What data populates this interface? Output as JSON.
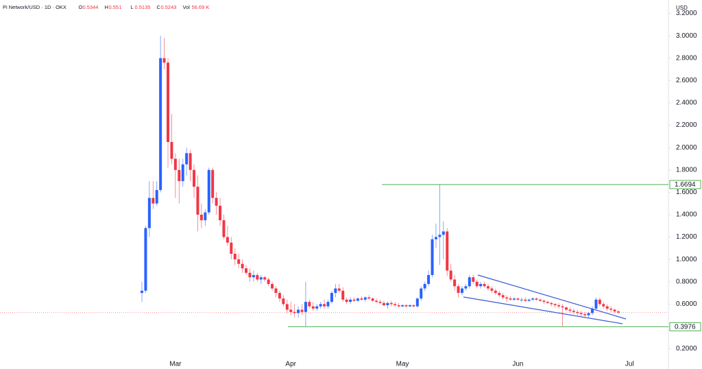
{
  "chart_data": {
    "type": "candlestick",
    "title": "Pi Network/USD · 1D · OKX",
    "ohlc_header": [
      {
        "label": "O",
        "value": 0.5344
      },
      {
        "label": "H",
        "value": 0.551
      },
      {
        "label": "L",
        "value": 0.5135
      },
      {
        "label": "C",
        "value": 0.5243
      }
    ],
    "volume_label": "Vol",
    "volume": "56.69 K",
    "currency": "USD",
    "up_color": "#2962ff",
    "down_color": "#f23645",
    "categories": [
      null,
      null,
      null,
      null,
      null,
      null,
      null,
      null,
      null,
      "Mar",
      null,
      null,
      null,
      null,
      null,
      null,
      null,
      null,
      null,
      null,
      null,
      null,
      null,
      null,
      null,
      null,
      null,
      null,
      null,
      null,
      null,
      null,
      null,
      null,
      null,
      null,
      null,
      null,
      null,
      null,
      "Apr",
      null,
      null,
      null,
      null,
      null,
      null,
      null,
      null,
      null,
      null,
      null,
      null,
      null,
      null,
      null,
      null,
      null,
      null,
      null,
      null,
      null,
      null,
      null,
      null,
      null,
      null,
      null,
      null,
      null,
      "May",
      null,
      null,
      null,
      null,
      null,
      null,
      null,
      null,
      null,
      null,
      null,
      null,
      null,
      null,
      null,
      null,
      null,
      null,
      null,
      null,
      null,
      null,
      null,
      null,
      null,
      null,
      null,
      null,
      null,
      null,
      "Jun",
      null,
      null,
      null,
      null,
      null,
      null,
      null,
      null,
      null,
      null,
      null,
      null,
      null,
      null,
      null,
      null,
      null,
      null,
      null,
      null,
      null,
      null,
      null,
      null,
      null,
      null,
      null,
      null,
      null,
      "Jul"
    ],
    "open": [
      0.7,
      0.72,
      1.28,
      1.55,
      1.5,
      1.62,
      2.8,
      2.76,
      2.05,
      1.9,
      1.8,
      1.7,
      1.85,
      1.95,
      1.8,
      1.65,
      1.4,
      1.35,
      1.42,
      1.8,
      1.55,
      1.48,
      1.35,
      1.2,
      1.15,
      1.05,
      1.0,
      0.96,
      0.92,
      0.88,
      0.84,
      0.86,
      0.82,
      0.84,
      0.82,
      0.78,
      0.74,
      0.7,
      0.65,
      0.6,
      0.55,
      0.53,
      0.52,
      0.55,
      0.53,
      0.62,
      0.58,
      0.56,
      0.58,
      0.6,
      0.58,
      0.62,
      0.7,
      0.74,
      0.72,
      0.64,
      0.62,
      0.64,
      0.63,
      0.65,
      0.64,
      0.66,
      0.65,
      0.63,
      0.62,
      0.61,
      0.59,
      0.61,
      0.6,
      0.59,
      0.58,
      0.59,
      0.58,
      0.59,
      0.58,
      0.65,
      0.74,
      0.78,
      0.86,
      1.18,
      1.2,
      1.22,
      1.25,
      0.9,
      0.82,
      0.76,
      0.7,
      0.74,
      0.76,
      0.84,
      0.8,
      0.76,
      0.78,
      0.76,
      0.74,
      0.72,
      0.7,
      0.68,
      0.66,
      0.65,
      0.64,
      0.65,
      0.64,
      0.64,
      0.63,
      0.64,
      0.65,
      0.64,
      0.63,
      0.62,
      0.61,
      0.6,
      0.59,
      0.58,
      0.57,
      0.55,
      0.54,
      0.53,
      0.52,
      0.51,
      0.5,
      0.52,
      0.56,
      0.64,
      0.6,
      0.58,
      0.56,
      0.55,
      0.5344,
      null,
      null,
      null
    ],
    "high": [
      0.8,
      1.3,
      1.7,
      1.7,
      1.7,
      3.0,
      2.98,
      2.8,
      2.3,
      1.95,
      1.9,
      1.9,
      2.0,
      1.98,
      1.85,
      1.75,
      1.5,
      1.45,
      1.82,
      1.82,
      1.6,
      1.55,
      1.4,
      1.3,
      1.2,
      1.1,
      1.05,
      1.0,
      0.95,
      0.92,
      0.9,
      0.88,
      0.86,
      0.85,
      0.84,
      0.8,
      0.76,
      0.72,
      0.68,
      0.64,
      0.62,
      0.6,
      0.58,
      0.6,
      0.8,
      0.64,
      0.62,
      0.6,
      0.62,
      0.64,
      0.64,
      0.72,
      0.78,
      0.78,
      0.75,
      0.66,
      0.66,
      0.66,
      0.66,
      0.67,
      0.67,
      0.68,
      0.66,
      0.65,
      0.64,
      0.63,
      0.62,
      0.63,
      0.62,
      0.61,
      0.6,
      0.6,
      0.6,
      0.6,
      0.66,
      0.76,
      0.8,
      0.9,
      1.22,
      1.32,
      1.6694,
      1.34,
      1.28,
      0.96,
      0.86,
      0.78,
      0.76,
      0.78,
      0.86,
      0.86,
      0.82,
      0.8,
      0.8,
      0.78,
      0.76,
      0.74,
      0.72,
      0.7,
      0.68,
      0.67,
      0.66,
      0.66,
      0.66,
      0.66,
      0.65,
      0.66,
      0.66,
      0.65,
      0.64,
      0.63,
      0.62,
      0.61,
      0.61,
      0.6,
      0.58,
      0.57,
      0.56,
      0.55,
      0.54,
      0.53,
      0.53,
      0.58,
      0.66,
      0.66,
      0.62,
      0.6,
      0.58,
      0.56,
      0.551,
      null,
      null,
      null
    ],
    "low": [
      0.62,
      0.7,
      1.2,
      1.45,
      1.48,
      1.6,
      2.7,
      1.82,
      1.85,
      1.55,
      1.5,
      1.65,
      1.75,
      1.7,
      1.55,
      1.25,
      1.28,
      1.3,
      1.4,
      1.5,
      1.4,
      1.3,
      1.18,
      1.12,
      1.0,
      0.95,
      0.92,
      0.88,
      0.86,
      0.8,
      0.8,
      0.8,
      0.78,
      0.8,
      0.76,
      0.72,
      0.66,
      0.62,
      0.58,
      0.52,
      0.5,
      0.48,
      0.48,
      0.5,
      0.4,
      0.56,
      0.54,
      0.54,
      0.56,
      0.56,
      0.56,
      0.6,
      0.66,
      0.7,
      0.62,
      0.6,
      0.6,
      0.62,
      0.62,
      0.63,
      0.62,
      0.64,
      0.62,
      0.61,
      0.6,
      0.58,
      0.56,
      0.58,
      0.57,
      0.57,
      0.57,
      0.57,
      0.57,
      0.57,
      0.57,
      0.63,
      0.72,
      0.76,
      0.84,
      1.1,
      0.95,
      1.0,
      0.85,
      0.8,
      0.72,
      0.66,
      0.68,
      0.72,
      0.74,
      0.78,
      0.74,
      0.74,
      0.75,
      0.72,
      0.7,
      0.68,
      0.66,
      0.64,
      0.62,
      0.63,
      0.63,
      0.63,
      0.62,
      0.62,
      0.62,
      0.63,
      0.63,
      0.62,
      0.6,
      0.6,
      0.58,
      0.57,
      0.56,
      0.4,
      0.54,
      0.52,
      0.51,
      0.5,
      0.49,
      0.48,
      0.48,
      0.5,
      0.54,
      0.58,
      0.56,
      0.54,
      0.53,
      0.52,
      0.5135,
      null,
      null,
      null
    ],
    "close": [
      0.72,
      1.28,
      1.55,
      1.5,
      1.62,
      2.8,
      2.76,
      2.05,
      1.9,
      1.8,
      1.7,
      1.85,
      1.95,
      1.8,
      1.65,
      1.4,
      1.35,
      1.42,
      1.8,
      1.55,
      1.48,
      1.35,
      1.2,
      1.15,
      1.05,
      1.0,
      0.96,
      0.92,
      0.88,
      0.84,
      0.86,
      0.82,
      0.84,
      0.82,
      0.78,
      0.74,
      0.7,
      0.65,
      0.6,
      0.55,
      0.53,
      0.52,
      0.55,
      0.53,
      0.62,
      0.58,
      0.56,
      0.58,
      0.6,
      0.58,
      0.62,
      0.7,
      0.74,
      0.72,
      0.64,
      0.62,
      0.64,
      0.63,
      0.65,
      0.64,
      0.66,
      0.65,
      0.63,
      0.62,
      0.61,
      0.59,
      0.61,
      0.6,
      0.59,
      0.58,
      0.59,
      0.58,
      0.59,
      0.58,
      0.65,
      0.74,
      0.78,
      0.86,
      1.18,
      1.2,
      1.22,
      1.25,
      0.9,
      0.82,
      0.76,
      0.7,
      0.74,
      0.76,
      0.84,
      0.8,
      0.76,
      0.78,
      0.76,
      0.74,
      0.72,
      0.7,
      0.68,
      0.66,
      0.65,
      0.64,
      0.65,
      0.64,
      0.64,
      0.63,
      0.64,
      0.65,
      0.64,
      0.63,
      0.62,
      0.61,
      0.6,
      0.59,
      0.58,
      0.57,
      0.55,
      0.54,
      0.53,
      0.52,
      0.51,
      0.5,
      0.52,
      0.56,
      0.64,
      0.6,
      0.58,
      0.56,
      0.55,
      0.5344,
      0.5243,
      null,
      null,
      null
    ],
    "levels": [
      1.6694,
      0.3976
    ],
    "level_color": "#4caf50",
    "ylim": [
      0.13,
      3.32
    ],
    "yticks": [
      {
        "value": 0.2,
        "label": "0.2000"
      },
      {
        "value": 0.4,
        "label": "0.4000"
      },
      {
        "value": 0.6,
        "label": "0.6000"
      },
      {
        "value": 0.8,
        "label": "0.8000"
      },
      {
        "value": 1.0,
        "label": "1.0000"
      },
      {
        "value": 1.2,
        "label": "1.2000"
      },
      {
        "value": 1.4,
        "label": "1.4000"
      },
      {
        "value": 1.6,
        "label": "1.6000"
      },
      {
        "value": 1.8,
        "label": "1.8000"
      },
      {
        "value": 2.0,
        "label": "2.0000"
      },
      {
        "value": 2.2,
        "label": "2.2000"
      },
      {
        "value": 2.4,
        "label": "2.4000"
      },
      {
        "value": 2.6,
        "label": "2.6000"
      },
      {
        "value": 2.8,
        "label": "2.8000"
      },
      {
        "value": 3.0,
        "label": "3.0000"
      },
      {
        "value": 3.2,
        "label": "3.2000"
      }
    ]
  }
}
